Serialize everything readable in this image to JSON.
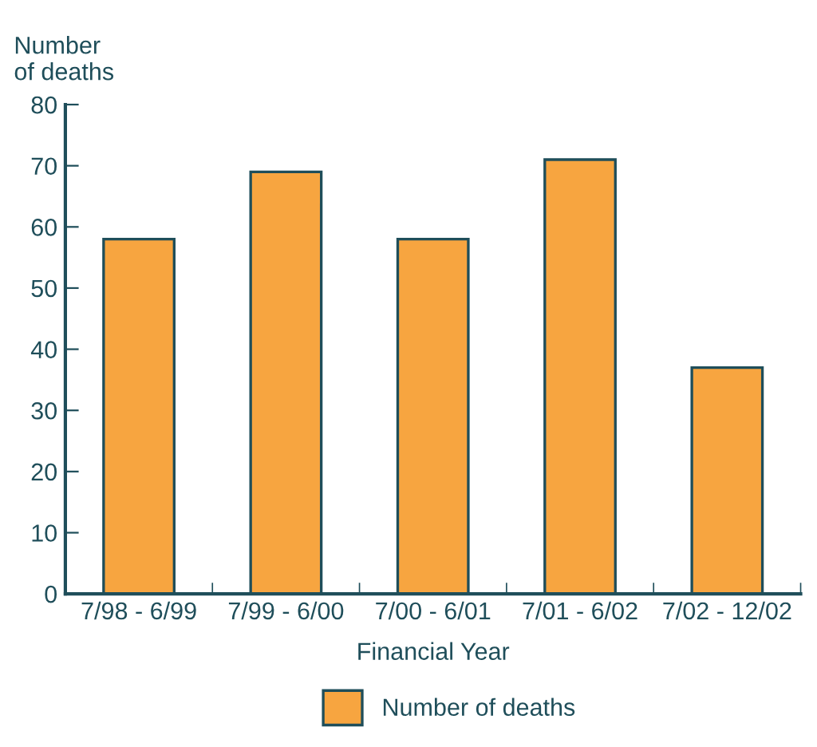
{
  "chart_data": {
    "type": "bar",
    "ylabel": "Number\nof deaths",
    "xlabel": "Financial Year",
    "categories": [
      "7/98 - 6/99",
      "7/99 - 6/00",
      "7/00 - 6/01",
      "7/01 - 6/02",
      "7/02 - 12/02"
    ],
    "series": [
      {
        "name": "Number of deaths",
        "color": "#f7a540",
        "values": [
          58,
          69,
          58,
          71,
          37
        ]
      }
    ],
    "ylim": [
      0,
      80
    ],
    "yticks": [
      0,
      10,
      20,
      30,
      40,
      50,
      60,
      70,
      80
    ],
    "grid": false,
    "legend": "bottom"
  }
}
